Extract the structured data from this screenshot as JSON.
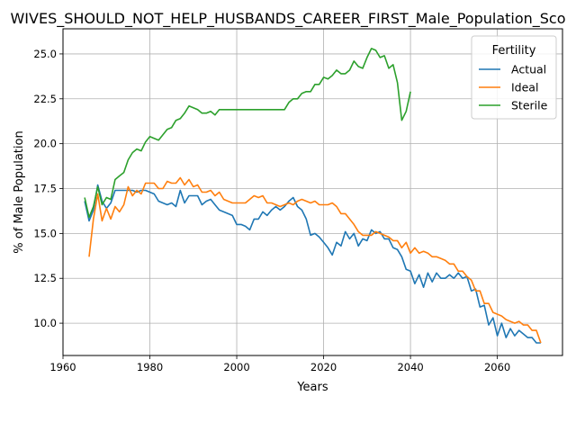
{
  "chart_data": {
    "type": "line",
    "title": "WIVES_SHOULD_NOT_HELP_HUSBANDS_CAREER_FIRST_Male_Population_Sco",
    "xlabel": "Years",
    "ylabel": "% of Male Population",
    "xlim": [
      1960,
      2075
    ],
    "ylim": [
      8.2,
      26.4
    ],
    "xticks": [
      1960,
      1980,
      2000,
      2020,
      2040,
      2060
    ],
    "yticks": [
      10.0,
      12.5,
      15.0,
      17.5,
      20.0,
      22.5,
      25.0
    ],
    "grid": true,
    "legend": {
      "title": "Fertility",
      "placement": "top-right"
    },
    "series": [
      {
        "name": "Actual",
        "color": "#1f77b4",
        "points": [
          [
            1965,
            16.8
          ],
          [
            1966,
            15.7
          ],
          [
            1967,
            16.3
          ],
          [
            1968,
            17.7
          ],
          [
            1969,
            16.8
          ],
          [
            1970,
            16.4
          ],
          [
            1971,
            16.7
          ],
          [
            1972,
            17.4
          ],
          [
            1973,
            17.4
          ],
          [
            1974,
            17.4
          ],
          [
            1975,
            17.4
          ],
          [
            1976,
            17.4
          ],
          [
            1977,
            17.3
          ],
          [
            1978,
            17.4
          ],
          [
            1979,
            17.4
          ],
          [
            1980,
            17.3
          ],
          [
            1981,
            17.2
          ],
          [
            1982,
            16.8
          ],
          [
            1983,
            16.7
          ],
          [
            1984,
            16.6
          ],
          [
            1985,
            16.7
          ],
          [
            1986,
            16.5
          ],
          [
            1987,
            17.4
          ],
          [
            1988,
            16.7
          ],
          [
            1989,
            17.1
          ],
          [
            1990,
            17.1
          ],
          [
            1991,
            17.1
          ],
          [
            1992,
            16.6
          ],
          [
            1993,
            16.8
          ],
          [
            1994,
            16.9
          ],
          [
            1995,
            16.6
          ],
          [
            1996,
            16.3
          ],
          [
            1997,
            16.2
          ],
          [
            1998,
            16.1
          ],
          [
            1999,
            16.0
          ],
          [
            2000,
            15.5
          ],
          [
            2001,
            15.5
          ],
          [
            2002,
            15.4
          ],
          [
            2003,
            15.2
          ],
          [
            2004,
            15.8
          ],
          [
            2005,
            15.8
          ],
          [
            2006,
            16.2
          ],
          [
            2007,
            16.0
          ],
          [
            2008,
            16.3
          ],
          [
            2009,
            16.5
          ],
          [
            2010,
            16.3
          ],
          [
            2011,
            16.5
          ],
          [
            2012,
            16.8
          ],
          [
            2013,
            17.0
          ],
          [
            2014,
            16.5
          ],
          [
            2015,
            16.3
          ],
          [
            2016,
            15.8
          ],
          [
            2017,
            14.9
          ],
          [
            2018,
            15.0
          ],
          [
            2019,
            14.8
          ],
          [
            2020,
            14.5
          ],
          [
            2021,
            14.2
          ],
          [
            2022,
            13.8
          ],
          [
            2023,
            14.5
          ],
          [
            2024,
            14.3
          ],
          [
            2025,
            15.1
          ],
          [
            2026,
            14.7
          ],
          [
            2027,
            15.0
          ],
          [
            2028,
            14.3
          ],
          [
            2029,
            14.7
          ],
          [
            2030,
            14.6
          ],
          [
            2031,
            15.2
          ],
          [
            2032,
            15.0
          ],
          [
            2033,
            15.1
          ],
          [
            2034,
            14.7
          ],
          [
            2035,
            14.7
          ],
          [
            2036,
            14.2
          ],
          [
            2037,
            14.1
          ],
          [
            2038,
            13.7
          ],
          [
            2039,
            13.0
          ],
          [
            2040,
            12.9
          ],
          [
            2041,
            12.2
          ],
          [
            2042,
            12.7
          ],
          [
            2043,
            12.0
          ],
          [
            2044,
            12.8
          ],
          [
            2045,
            12.3
          ],
          [
            2046,
            12.8
          ],
          [
            2047,
            12.5
          ],
          [
            2048,
            12.5
          ],
          [
            2049,
            12.7
          ],
          [
            2050,
            12.5
          ],
          [
            2051,
            12.8
          ],
          [
            2052,
            12.5
          ],
          [
            2053,
            12.6
          ],
          [
            2054,
            11.8
          ],
          [
            2055,
            11.9
          ],
          [
            2056,
            10.9
          ],
          [
            2057,
            11.0
          ],
          [
            2058,
            9.9
          ],
          [
            2059,
            10.3
          ],
          [
            2060,
            9.3
          ],
          [
            2061,
            10.0
          ],
          [
            2062,
            9.2
          ],
          [
            2063,
            9.7
          ],
          [
            2064,
            9.3
          ],
          [
            2065,
            9.6
          ],
          [
            2066,
            9.4
          ],
          [
            2067,
            9.2
          ],
          [
            2068,
            9.2
          ],
          [
            2069,
            8.9
          ],
          [
            2070,
            8.9
          ]
        ]
      },
      {
        "name": "Ideal",
        "color": "#ff7f0e",
        "points": [
          [
            1966,
            13.7
          ],
          [
            1967,
            15.8
          ],
          [
            1968,
            17.2
          ],
          [
            1969,
            15.7
          ],
          [
            1970,
            16.4
          ],
          [
            1971,
            15.8
          ],
          [
            1972,
            16.5
          ],
          [
            1973,
            16.2
          ],
          [
            1974,
            16.6
          ],
          [
            1975,
            17.6
          ],
          [
            1976,
            17.1
          ],
          [
            1977,
            17.4
          ],
          [
            1978,
            17.2
          ],
          [
            1979,
            17.8
          ],
          [
            1980,
            17.8
          ],
          [
            1981,
            17.8
          ],
          [
            1982,
            17.5
          ],
          [
            1983,
            17.5
          ],
          [
            1984,
            17.9
          ],
          [
            1985,
            17.8
          ],
          [
            1986,
            17.8
          ],
          [
            1987,
            18.1
          ],
          [
            1988,
            17.7
          ],
          [
            1989,
            18.0
          ],
          [
            1990,
            17.6
          ],
          [
            1991,
            17.7
          ],
          [
            1992,
            17.3
          ],
          [
            1993,
            17.3
          ],
          [
            1994,
            17.4
          ],
          [
            1995,
            17.1
          ],
          [
            1996,
            17.3
          ],
          [
            1997,
            16.9
          ],
          [
            1998,
            16.8
          ],
          [
            1999,
            16.7
          ],
          [
            2000,
            16.7
          ],
          [
            2001,
            16.7
          ],
          [
            2002,
            16.7
          ],
          [
            2003,
            16.9
          ],
          [
            2004,
            17.1
          ],
          [
            2005,
            17.0
          ],
          [
            2006,
            17.1
          ],
          [
            2007,
            16.7
          ],
          [
            2008,
            16.7
          ],
          [
            2009,
            16.6
          ],
          [
            2010,
            16.5
          ],
          [
            2011,
            16.6
          ],
          [
            2012,
            16.7
          ],
          [
            2013,
            16.6
          ],
          [
            2014,
            16.8
          ],
          [
            2015,
            16.9
          ],
          [
            2016,
            16.8
          ],
          [
            2017,
            16.7
          ],
          [
            2018,
            16.8
          ],
          [
            2019,
            16.6
          ],
          [
            2020,
            16.6
          ],
          [
            2021,
            16.6
          ],
          [
            2022,
            16.7
          ],
          [
            2023,
            16.5
          ],
          [
            2024,
            16.1
          ],
          [
            2025,
            16.1
          ],
          [
            2026,
            15.8
          ],
          [
            2027,
            15.5
          ],
          [
            2028,
            15.1
          ],
          [
            2029,
            14.9
          ],
          [
            2030,
            14.9
          ],
          [
            2031,
            14.9
          ],
          [
            2032,
            15.1
          ],
          [
            2033,
            15.0
          ],
          [
            2034,
            14.9
          ],
          [
            2035,
            14.8
          ],
          [
            2036,
            14.6
          ],
          [
            2037,
            14.6
          ],
          [
            2038,
            14.2
          ],
          [
            2039,
            14.5
          ],
          [
            2040,
            13.9
          ],
          [
            2041,
            14.2
          ],
          [
            2042,
            13.9
          ],
          [
            2043,
            14.0
          ],
          [
            2044,
            13.9
          ],
          [
            2045,
            13.7
          ],
          [
            2046,
            13.7
          ],
          [
            2047,
            13.6
          ],
          [
            2048,
            13.5
          ],
          [
            2049,
            13.3
          ],
          [
            2050,
            13.3
          ],
          [
            2051,
            12.9
          ],
          [
            2052,
            12.9
          ],
          [
            2053,
            12.6
          ],
          [
            2054,
            12.4
          ],
          [
            2055,
            11.8
          ],
          [
            2056,
            11.8
          ],
          [
            2057,
            11.1
          ],
          [
            2058,
            11.1
          ],
          [
            2059,
            10.6
          ],
          [
            2060,
            10.5
          ],
          [
            2061,
            10.4
          ],
          [
            2062,
            10.2
          ],
          [
            2063,
            10.1
          ],
          [
            2064,
            10.0
          ],
          [
            2065,
            10.1
          ],
          [
            2066,
            9.9
          ],
          [
            2067,
            9.9
          ],
          [
            2068,
            9.6
          ],
          [
            2069,
            9.6
          ],
          [
            2070,
            8.9
          ]
        ]
      },
      {
        "name": "Sterile",
        "color": "#2ca02c",
        "points": [
          [
            1965,
            17.0
          ],
          [
            1966,
            15.9
          ],
          [
            1967,
            16.5
          ],
          [
            1968,
            17.6
          ],
          [
            1969,
            16.6
          ],
          [
            1970,
            17.0
          ],
          [
            1971,
            16.9
          ],
          [
            1972,
            18.0
          ],
          [
            1973,
            18.2
          ],
          [
            1974,
            18.4
          ],
          [
            1975,
            19.1
          ],
          [
            1976,
            19.5
          ],
          [
            1977,
            19.7
          ],
          [
            1978,
            19.6
          ],
          [
            1979,
            20.1
          ],
          [
            1980,
            20.4
          ],
          [
            1981,
            20.3
          ],
          [
            1982,
            20.2
          ],
          [
            1983,
            20.5
          ],
          [
            1984,
            20.8
          ],
          [
            1985,
            20.9
          ],
          [
            1986,
            21.3
          ],
          [
            1987,
            21.4
          ],
          [
            1988,
            21.7
          ],
          [
            1989,
            22.1
          ],
          [
            1990,
            22.0
          ],
          [
            1991,
            21.9
          ],
          [
            1992,
            21.7
          ],
          [
            1993,
            21.7
          ],
          [
            1994,
            21.8
          ],
          [
            1995,
            21.6
          ],
          [
            1996,
            21.9
          ],
          [
            1997,
            21.9
          ],
          [
            2000,
            21.9
          ],
          [
            2005,
            21.9
          ],
          [
            2010,
            21.9
          ],
          [
            2011,
            21.9
          ],
          [
            2012,
            22.3
          ],
          [
            2013,
            22.5
          ],
          [
            2014,
            22.5
          ],
          [
            2015,
            22.8
          ],
          [
            2016,
            22.9
          ],
          [
            2017,
            22.9
          ],
          [
            2018,
            23.3
          ],
          [
            2019,
            23.3
          ],
          [
            2020,
            23.7
          ],
          [
            2021,
            23.6
          ],
          [
            2022,
            23.8
          ],
          [
            2023,
            24.1
          ],
          [
            2024,
            23.9
          ],
          [
            2025,
            23.9
          ],
          [
            2026,
            24.1
          ],
          [
            2027,
            24.6
          ],
          [
            2028,
            24.3
          ],
          [
            2029,
            24.2
          ],
          [
            2030,
            24.8
          ],
          [
            2031,
            25.3
          ],
          [
            2032,
            25.2
          ],
          [
            2033,
            24.8
          ],
          [
            2034,
            24.9
          ],
          [
            2035,
            24.2
          ],
          [
            2036,
            24.4
          ],
          [
            2037,
            23.4
          ],
          [
            2038,
            21.3
          ],
          [
            2039,
            21.8
          ],
          [
            2040,
            22.9
          ]
        ]
      }
    ]
  }
}
